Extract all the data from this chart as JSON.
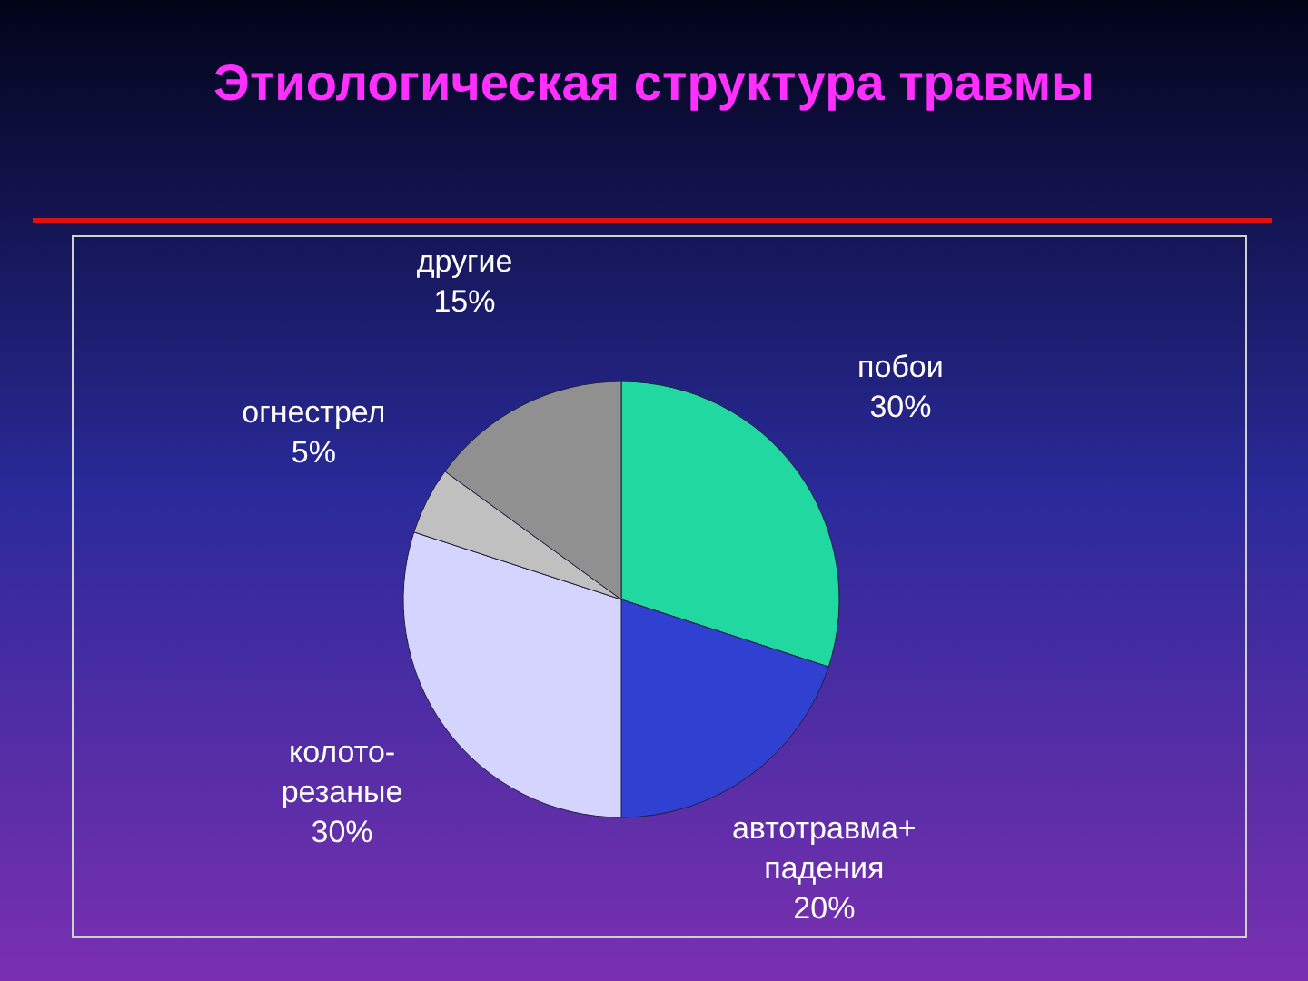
{
  "chart_data": {
    "type": "pie",
    "title": "Этиологическая структура травмы",
    "categories": [
      "побои",
      "автотравма+\nпадения",
      "колото-\nрезаные",
      "огнестрел",
      "другие"
    ],
    "values": [
      30,
      20,
      30,
      5,
      15
    ],
    "colors": [
      "#20d8a0",
      "#3040d0",
      "#d4d4ff",
      "#c0c0c0",
      "#909090"
    ],
    "value_labels": [
      "30%",
      "20%",
      "30%",
      "5%",
      "15%"
    ]
  }
}
